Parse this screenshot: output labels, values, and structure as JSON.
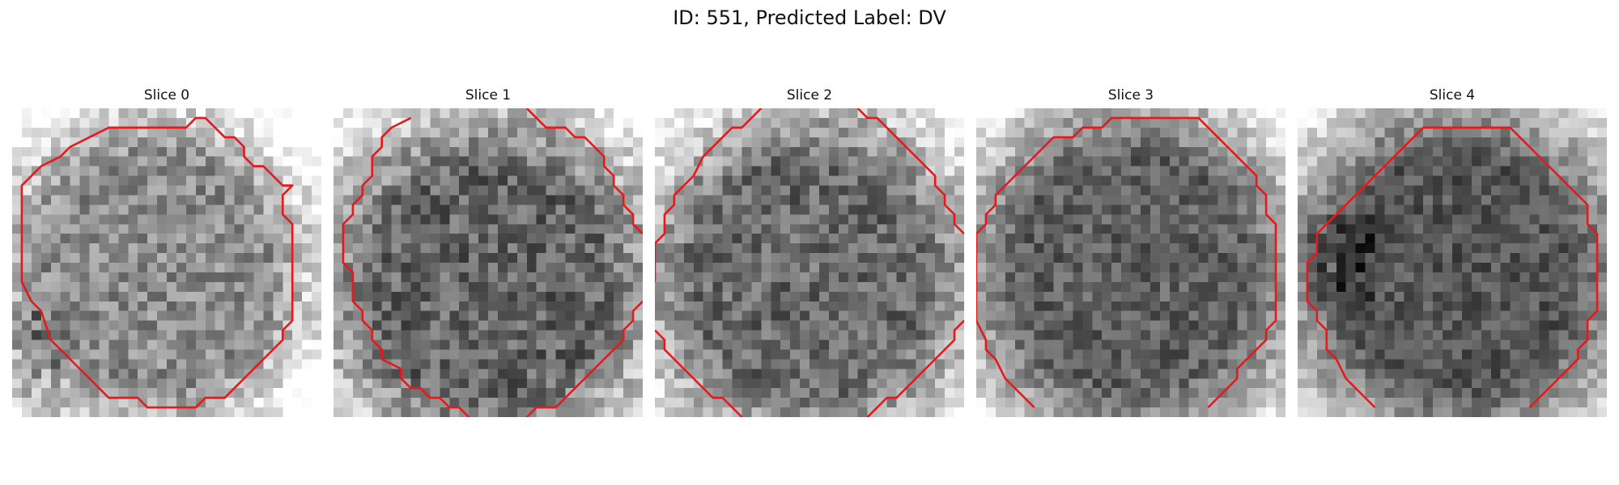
{
  "figure": {
    "title": "ID: 551, Predicted Label: DV"
  },
  "panels": [
    {
      "title": "Slice 0",
      "base_gray": 140,
      "gray_spread": 90,
      "center_offset": [
        -3,
        2
      ],
      "contour_color": "#e41a1c"
    },
    {
      "title": "Slice 1",
      "base_gray": 100,
      "gray_spread": 95,
      "center_offset": [
        0,
        4
      ],
      "contour_color": "#e41a1c"
    },
    {
      "title": "Slice 2",
      "base_gray": 105,
      "gray_spread": 90,
      "center_offset": [
        0,
        3
      ],
      "contour_color": "#e41a1c"
    },
    {
      "title": "Slice 3",
      "base_gray": 95,
      "gray_spread": 75,
      "center_offset": [
        0,
        2
      ],
      "contour_color": "#e41a1c"
    },
    {
      "title": "Slice 4",
      "base_gray": 85,
      "gray_spread": 70,
      "center_offset": [
        1,
        2
      ],
      "contour_color": "#e41a1c"
    }
  ]
}
